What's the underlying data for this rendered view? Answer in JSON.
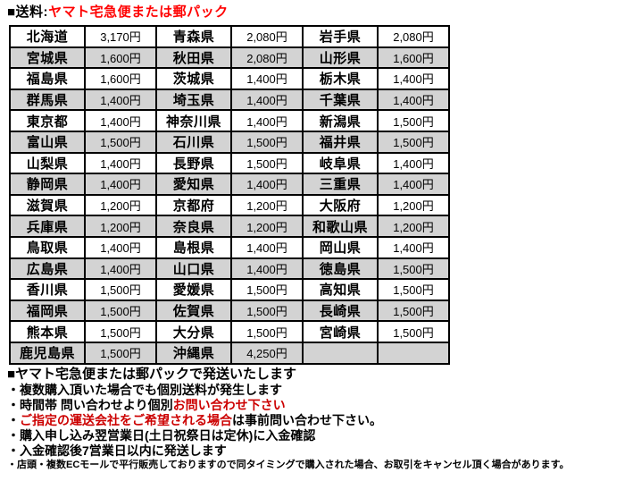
{
  "title": {
    "prefix": "■送料:",
    "method": "ヤマト宅急便または郵パック"
  },
  "colors": {
    "title_red": "#ff0000",
    "note_red": "#cc0000",
    "row_shade": "#d3d3d3",
    "border": "#000000"
  },
  "table": {
    "rows": [
      [
        {
          "pref": "北海道",
          "price": "3,170円"
        },
        {
          "pref": "青森県",
          "price": "2,080円"
        },
        {
          "pref": "岩手県",
          "price": "2,080円"
        }
      ],
      [
        {
          "pref": "宮城県",
          "price": "1,600円"
        },
        {
          "pref": "秋田県",
          "price": "2,080円"
        },
        {
          "pref": "山形県",
          "price": "1,600円"
        }
      ],
      [
        {
          "pref": "福島県",
          "price": "1,600円"
        },
        {
          "pref": "茨城県",
          "price": "1,400円"
        },
        {
          "pref": "栃木県",
          "price": "1,400円"
        }
      ],
      [
        {
          "pref": "群馬県",
          "price": "1,400円"
        },
        {
          "pref": "埼玉県",
          "price": "1,400円"
        },
        {
          "pref": "千葉県",
          "price": "1,400円"
        }
      ],
      [
        {
          "pref": "東京都",
          "price": "1,400円"
        },
        {
          "pref": "神奈川県",
          "price": "1,400円"
        },
        {
          "pref": "新潟県",
          "price": "1,500円"
        }
      ],
      [
        {
          "pref": "富山県",
          "price": "1,500円"
        },
        {
          "pref": "石川県",
          "price": "1,500円"
        },
        {
          "pref": "福井県",
          "price": "1,500円"
        }
      ],
      [
        {
          "pref": "山梨県",
          "price": "1,400円"
        },
        {
          "pref": "長野県",
          "price": "1,500円"
        },
        {
          "pref": "岐阜県",
          "price": "1,400円"
        }
      ],
      [
        {
          "pref": "静岡県",
          "price": "1,400円"
        },
        {
          "pref": "愛知県",
          "price": "1,400円"
        },
        {
          "pref": "三重県",
          "price": "1,400円"
        }
      ],
      [
        {
          "pref": "滋賀県",
          "price": "1,200円"
        },
        {
          "pref": "京都府",
          "price": "1,200円"
        },
        {
          "pref": "大阪府",
          "price": "1,200円"
        }
      ],
      [
        {
          "pref": "兵庫県",
          "price": "1,200円"
        },
        {
          "pref": "奈良県",
          "price": "1,200円"
        },
        {
          "pref": "和歌山県",
          "price": "1,200円"
        }
      ],
      [
        {
          "pref": "鳥取県",
          "price": "1,400円"
        },
        {
          "pref": "島根県",
          "price": "1,400円"
        },
        {
          "pref": "岡山県",
          "price": "1,400円"
        }
      ],
      [
        {
          "pref": "広島県",
          "price": "1,400円"
        },
        {
          "pref": "山口県",
          "price": "1,400円"
        },
        {
          "pref": "徳島県",
          "price": "1,500円"
        }
      ],
      [
        {
          "pref": "香川県",
          "price": "1,500円"
        },
        {
          "pref": "愛媛県",
          "price": "1,500円"
        },
        {
          "pref": "高知県",
          "price": "1,500円"
        }
      ],
      [
        {
          "pref": "福岡県",
          "price": "1,500円"
        },
        {
          "pref": "佐賀県",
          "price": "1,500円"
        },
        {
          "pref": "長崎県",
          "price": "1,500円"
        }
      ],
      [
        {
          "pref": "熊本県",
          "price": "1,500円"
        },
        {
          "pref": "大分県",
          "price": "1,500円"
        },
        {
          "pref": "宮崎県",
          "price": "1,500円"
        }
      ],
      [
        {
          "pref": "鹿児島県",
          "price": "1,500円"
        },
        {
          "pref": "沖縄県",
          "price": "4,250円"
        },
        {
          "pref": "",
          "price": ""
        }
      ]
    ]
  },
  "notes": {
    "heading": "■ヤマト宅急便または郵パックで発送いたします",
    "bullets": [
      {
        "size": "normal",
        "segments": [
          {
            "text": "・複数購入頂いた場合でも個別送料が発生します",
            "red": false
          }
        ]
      },
      {
        "size": "normal",
        "segments": [
          {
            "text": "・時間帯 問い合わせより個別",
            "red": false
          },
          {
            "text": "お問い合わせ下さい",
            "red": true
          }
        ]
      },
      {
        "size": "normal",
        "segments": [
          {
            "text": "・",
            "red": false
          },
          {
            "text": "ご指定の運送会社をご希望される場合",
            "red": true
          },
          {
            "text": "は事前問い合わせ下さい。",
            "red": false
          }
        ]
      },
      {
        "size": "normal",
        "segments": [
          {
            "text": "・購入申し込み翌営業日(土日祝祭日は定休)に入金確認",
            "red": false
          }
        ]
      },
      {
        "size": "normal",
        "segments": [
          {
            "text": "・入金確認後7営業日以内に発送します",
            "red": false
          }
        ]
      },
      {
        "size": "small",
        "segments": [
          {
            "text": "・店頭・複数ECモールで平行販売しておりますので同タイミングで購入された場合、お取引をキャンセル頂く場合があります。",
            "red": false
          }
        ]
      }
    ]
  }
}
